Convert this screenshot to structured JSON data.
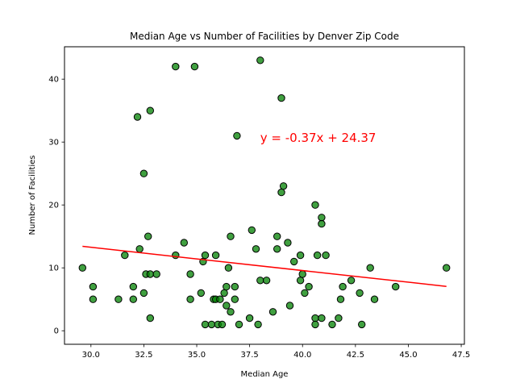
{
  "chart_data": {
    "type": "scatter",
    "title": "Median Age vs Number of Facilities by Denver Zip Code",
    "xlabel": "Median Age",
    "ylabel": "Number of Facilities",
    "xlim": [
      28.75,
      47.65
    ],
    "ylim": [
      -2.15,
      45.15
    ],
    "xticks": [
      "30.0",
      "32.5",
      "35.0",
      "37.5",
      "40.0",
      "42.5",
      "45.0",
      "47.5"
    ],
    "yticks": [
      "0",
      "10",
      "20",
      "30",
      "40"
    ],
    "xtick_values": [
      30,
      32.5,
      35,
      37.5,
      40,
      42.5,
      45,
      47.5
    ],
    "ytick_values": [
      0,
      10,
      20,
      30,
      40
    ],
    "grid": false,
    "point_color": "#008000",
    "point_edge_color": "#000000",
    "line_color": "#ff0000",
    "annotation": {
      "text": "y = -0.37x + 24.37",
      "x": 38.0,
      "y": 30.0,
      "color": "#ff0000"
    },
    "regression": {
      "slope": -0.37,
      "intercept": 24.37,
      "x_range": [
        29.6,
        46.8
      ]
    },
    "points": [
      [
        29.6,
        10
      ],
      [
        30.1,
        7
      ],
      [
        30.1,
        5
      ],
      [
        31.3,
        5
      ],
      [
        31.6,
        12
      ],
      [
        32.0,
        7
      ],
      [
        32.0,
        5
      ],
      [
        32.2,
        34
      ],
      [
        32.3,
        13
      ],
      [
        32.5,
        25
      ],
      [
        32.5,
        6
      ],
      [
        32.6,
        9
      ],
      [
        32.7,
        15
      ],
      [
        32.8,
        35
      ],
      [
        32.8,
        9
      ],
      [
        32.8,
        2
      ],
      [
        33.1,
        9
      ],
      [
        34.0,
        42
      ],
      [
        34.0,
        12
      ],
      [
        34.4,
        14
      ],
      [
        34.7,
        9
      ],
      [
        34.7,
        5
      ],
      [
        34.9,
        42
      ],
      [
        35.2,
        6
      ],
      [
        35.3,
        11
      ],
      [
        35.4,
        12
      ],
      [
        35.4,
        1
      ],
      [
        35.7,
        1
      ],
      [
        35.9,
        12
      ],
      [
        35.8,
        5
      ],
      [
        35.9,
        5
      ],
      [
        36.0,
        1
      ],
      [
        36.1,
        5
      ],
      [
        36.2,
        1
      ],
      [
        36.3,
        6
      ],
      [
        36.4,
        7
      ],
      [
        36.5,
        10
      ],
      [
        36.4,
        4
      ],
      [
        36.6,
        15
      ],
      [
        36.6,
        3
      ],
      [
        36.8,
        5
      ],
      [
        36.8,
        7
      ],
      [
        36.9,
        31
      ],
      [
        37.0,
        1
      ],
      [
        37.5,
        2
      ],
      [
        37.6,
        16
      ],
      [
        37.8,
        13
      ],
      [
        37.9,
        1
      ],
      [
        38.0,
        43
      ],
      [
        38.0,
        8
      ],
      [
        38.3,
        8
      ],
      [
        38.6,
        3
      ],
      [
        38.8,
        15
      ],
      [
        38.8,
        13
      ],
      [
        39.0,
        22
      ],
      [
        39.0,
        37
      ],
      [
        39.1,
        23
      ],
      [
        39.3,
        14
      ],
      [
        39.4,
        4
      ],
      [
        39.6,
        11
      ],
      [
        39.9,
        12
      ],
      [
        39.9,
        8
      ],
      [
        40.0,
        9
      ],
      [
        40.1,
        6
      ],
      [
        40.3,
        7
      ],
      [
        40.6,
        20
      ],
      [
        40.7,
        12
      ],
      [
        40.6,
        2
      ],
      [
        40.6,
        1
      ],
      [
        40.9,
        18
      ],
      [
        40.9,
        17
      ],
      [
        40.9,
        2
      ],
      [
        41.1,
        12
      ],
      [
        41.4,
        1
      ],
      [
        41.7,
        2
      ],
      [
        41.8,
        5
      ],
      [
        41.9,
        7
      ],
      [
        42.3,
        8
      ],
      [
        42.7,
        6
      ],
      [
        42.8,
        1
      ],
      [
        43.2,
        10
      ],
      [
        43.4,
        5
      ],
      [
        44.4,
        7
      ],
      [
        46.8,
        10
      ]
    ]
  }
}
